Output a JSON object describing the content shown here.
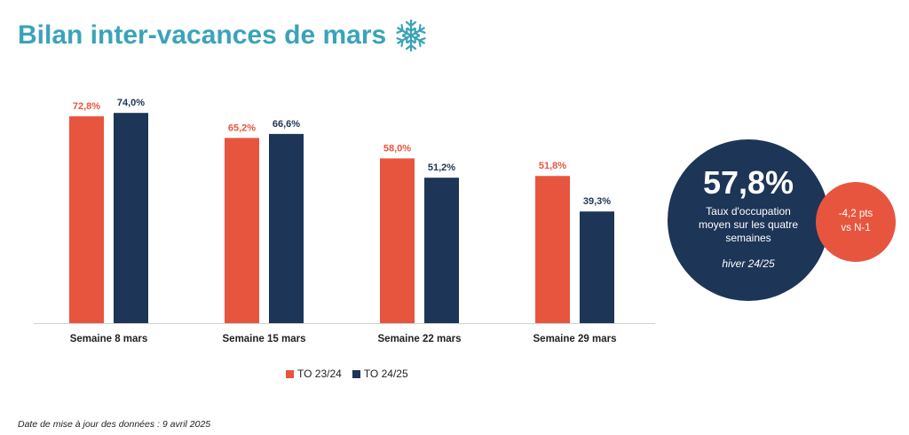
{
  "title": "Bilan inter-vacances de mars",
  "title_icon": "snowflake-icon",
  "chart_data": {
    "type": "bar",
    "categories": [
      "Semaine 8 mars",
      "Semaine 15 mars",
      "Semaine 22 mars",
      "Semaine 29 mars"
    ],
    "series": [
      {
        "name": "TO 23/24",
        "color": "#e8553f",
        "values": [
          72.8,
          65.2,
          58.0,
          51.8
        ],
        "labels": [
          "72,8%",
          "65,2%",
          "58,0%",
          "51,8%"
        ]
      },
      {
        "name": "TO 24/25",
        "color": "#1d3557",
        "values": [
          74.0,
          66.6,
          51.2,
          39.3
        ],
        "labels": [
          "74,0%",
          "66,6%",
          "51,2%",
          "39,3%"
        ]
      }
    ],
    "ylim": [
      0,
      80
    ],
    "grid": false,
    "legend_position": "bottom"
  },
  "kpi": {
    "value": "57,8%",
    "description": "Taux d'occupation moyen sur les quatre semaines",
    "season": "hiver 24/25",
    "delta_line1": "-4,2 pts",
    "delta_line2": "vs N-1"
  },
  "footnote": "Date de mise à jour des données : 9 avril 2025"
}
